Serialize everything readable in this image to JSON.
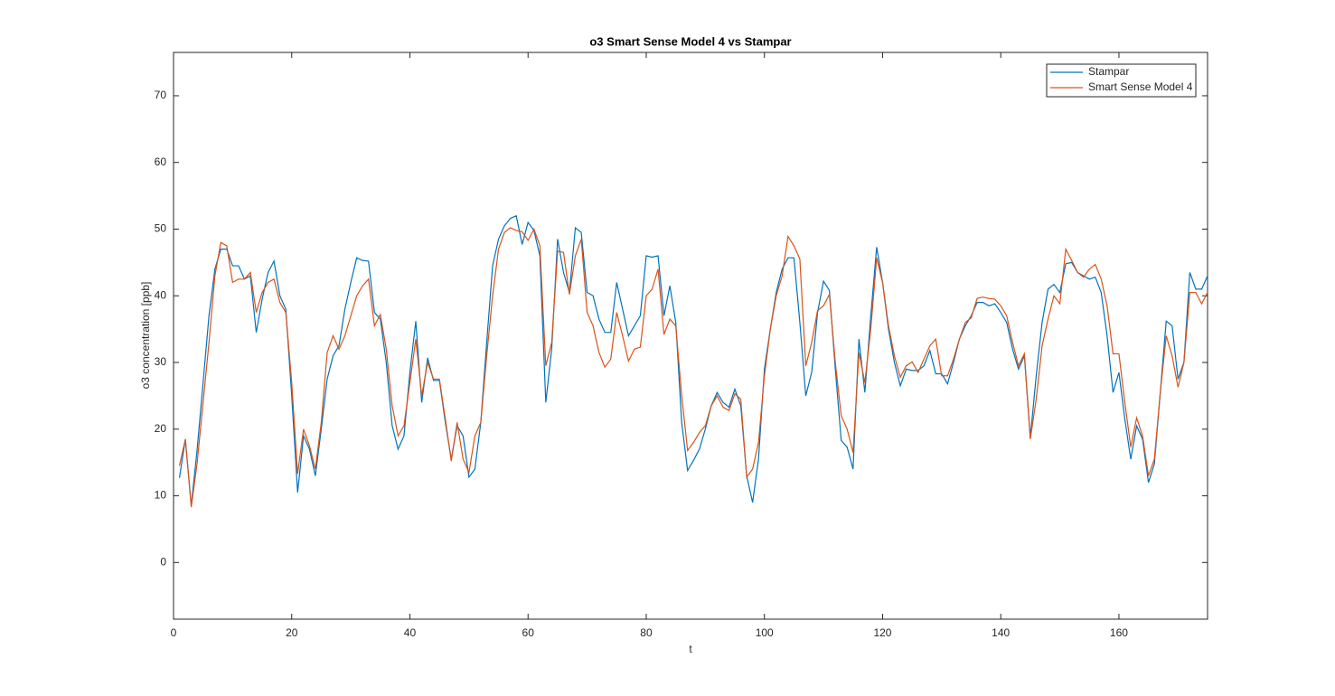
{
  "chart_data": {
    "type": "line",
    "title": "o3 Smart Sense Model 4 vs Stampar",
    "x_label": "t",
    "y_label": "o3 concentration [ppb]",
    "x": [
      1,
      2,
      3,
      4,
      5,
      6,
      7,
      8,
      9,
      10,
      11,
      12,
      13,
      14,
      15,
      16,
      17,
      18,
      19,
      20,
      21,
      22,
      23,
      24,
      25,
      26,
      27,
      28,
      29,
      30,
      31,
      32,
      33,
      34,
      35,
      36,
      37,
      38,
      39,
      40,
      41,
      42,
      43,
      44,
      45,
      46,
      47,
      48,
      49,
      50,
      51,
      52,
      53,
      54,
      55,
      56,
      57,
      58,
      59,
      60,
      61,
      62,
      63,
      64,
      65,
      66,
      67,
      68,
      69,
      70,
      71,
      72,
      73,
      74,
      75,
      76,
      77,
      78,
      79,
      80,
      81,
      82,
      83,
      84,
      85,
      86,
      87,
      88,
      89,
      90,
      91,
      92,
      93,
      94,
      95,
      96,
      97,
      98,
      99,
      100,
      101,
      102,
      103,
      104,
      105,
      106,
      107,
      108,
      109,
      110,
      111,
      112,
      113,
      114,
      115,
      116,
      117,
      118,
      119,
      120,
      121,
      122,
      123,
      124,
      125,
      126,
      127,
      128,
      129,
      130,
      131,
      132,
      133,
      134,
      135,
      136,
      137,
      138,
      139,
      140,
      141,
      142,
      143,
      144,
      145,
      146,
      147,
      148,
      149,
      150,
      151,
      152,
      153,
      154,
      155,
      156,
      157,
      158,
      159,
      160,
      161,
      162,
      163,
      164,
      165,
      166,
      167,
      168,
      169,
      170,
      171,
      172,
      173,
      174,
      175
    ],
    "series": [
      {
        "name": "Stampar",
        "color": "#0072BD",
        "values": [
          12.7,
          18.5,
          8.5,
          17,
          27,
          37,
          44,
          47,
          47,
          44.5,
          44.5,
          42.5,
          43,
          34.5,
          39.5,
          43.5,
          45.2,
          40,
          38,
          25,
          10.5,
          19,
          17,
          13,
          20,
          27.5,
          31,
          32.5,
          38,
          42,
          45.7,
          45.3,
          45.2,
          37.5,
          36.5,
          30,
          20.5,
          17,
          19,
          28.5,
          36.2,
          24,
          30.7,
          27.3,
          27.3,
          21,
          15.5,
          20.5,
          19,
          12.8,
          14,
          21,
          33,
          44.5,
          48.5,
          50.5,
          51.6,
          52,
          47.7,
          51,
          49.8,
          46,
          24,
          32,
          48.5,
          43.5,
          40.5,
          50.2,
          49.5,
          40.5,
          40,
          36.5,
          34.5,
          34.5,
          42,
          38,
          34,
          35.5,
          37,
          46,
          45.8,
          46,
          37,
          41.5,
          36,
          21,
          13.8,
          15.3,
          17,
          20,
          23.5,
          25.5,
          24,
          23.3,
          26,
          23.5,
          13,
          9,
          15.5,
          29,
          35,
          40.5,
          44,
          45.7,
          45.7,
          36,
          25,
          28.5,
          37.5,
          42.2,
          40.8,
          29,
          18.3,
          17.3,
          14,
          33.5,
          25.5,
          37,
          47.3,
          42,
          35,
          30,
          26.5,
          29,
          28.8,
          28.8,
          29.5,
          31.8,
          28.3,
          28.3,
          26.8,
          30,
          33.5,
          35.5,
          37,
          39,
          39,
          38.5,
          38.8,
          37.5,
          36,
          32,
          29,
          31,
          18.7,
          28,
          36,
          41,
          41.7,
          40.5,
          44.8,
          45,
          43.5,
          43,
          42.5,
          42.8,
          40.5,
          34,
          25.5,
          28.5,
          21.5,
          15.5,
          20.5,
          18.5,
          12,
          14.8,
          25.5,
          36.2,
          35.5,
          27.5,
          30,
          43.5,
          41,
          41,
          43
        ]
      },
      {
        "name": "Smart Sense Model 4",
        "color": "#D95319",
        "values": [
          14.5,
          18.5,
          8.3,
          15,
          24,
          33,
          43,
          48,
          47.5,
          42,
          42.5,
          42.5,
          43.5,
          37.5,
          40.5,
          42,
          42.5,
          39,
          37.5,
          27,
          13.3,
          20,
          17.5,
          14,
          21,
          31.5,
          34,
          32,
          34,
          37,
          40,
          41.5,
          42.5,
          35.5,
          37.2,
          32,
          23.5,
          19,
          20.5,
          27,
          33.5,
          25,
          30,
          27.5,
          27.5,
          21.5,
          15.2,
          21,
          15.5,
          13.5,
          19,
          21,
          31,
          40,
          47,
          49.5,
          50.2,
          49.8,
          49.6,
          48.3,
          50,
          47.5,
          29.5,
          33,
          46.7,
          46.5,
          40.2,
          46,
          48.5,
          37.5,
          35.5,
          31.5,
          29.3,
          30.5,
          37.5,
          34,
          30.2,
          32,
          32.3,
          40,
          41,
          44,
          34.2,
          36.5,
          35.5,
          25,
          16.8,
          18,
          19.5,
          20.5,
          23.5,
          25,
          23.3,
          22.8,
          25.3,
          24.5,
          12.8,
          14,
          18,
          28,
          35,
          40,
          43,
          48.9,
          47.5,
          45.5,
          29.5,
          33,
          37.8,
          38.5,
          40.2,
          30,
          22,
          20,
          16.5,
          31.5,
          27,
          35,
          45.7,
          42,
          35.5,
          31,
          27.8,
          29.5,
          30.1,
          28.5,
          30.5,
          32.5,
          33.5,
          28,
          28,
          30.5,
          33.5,
          36,
          36.7,
          39.6,
          39.8,
          39.6,
          39.5,
          38.5,
          37,
          33,
          29.5,
          31.3,
          18.5,
          24.5,
          32.5,
          36.5,
          40,
          38.8,
          47,
          45.3,
          43.5,
          42.8,
          44,
          44.7,
          42.5,
          38.5,
          31.3,
          31.3,
          24,
          17.3,
          21.7,
          19,
          13,
          15.5,
          25.5,
          34,
          31,
          26.3,
          30,
          40.5,
          40.5,
          38.8,
          40.5
        ]
      }
    ],
    "xlim": [
      0,
      175
    ],
    "ylim": [
      -8.5,
      76.5
    ],
    "xticks": [
      0,
      20,
      40,
      60,
      80,
      100,
      120,
      140,
      160
    ],
    "yticks": [
      0,
      10,
      20,
      30,
      40,
      50,
      60,
      70
    ],
    "legend": "top-right"
  }
}
